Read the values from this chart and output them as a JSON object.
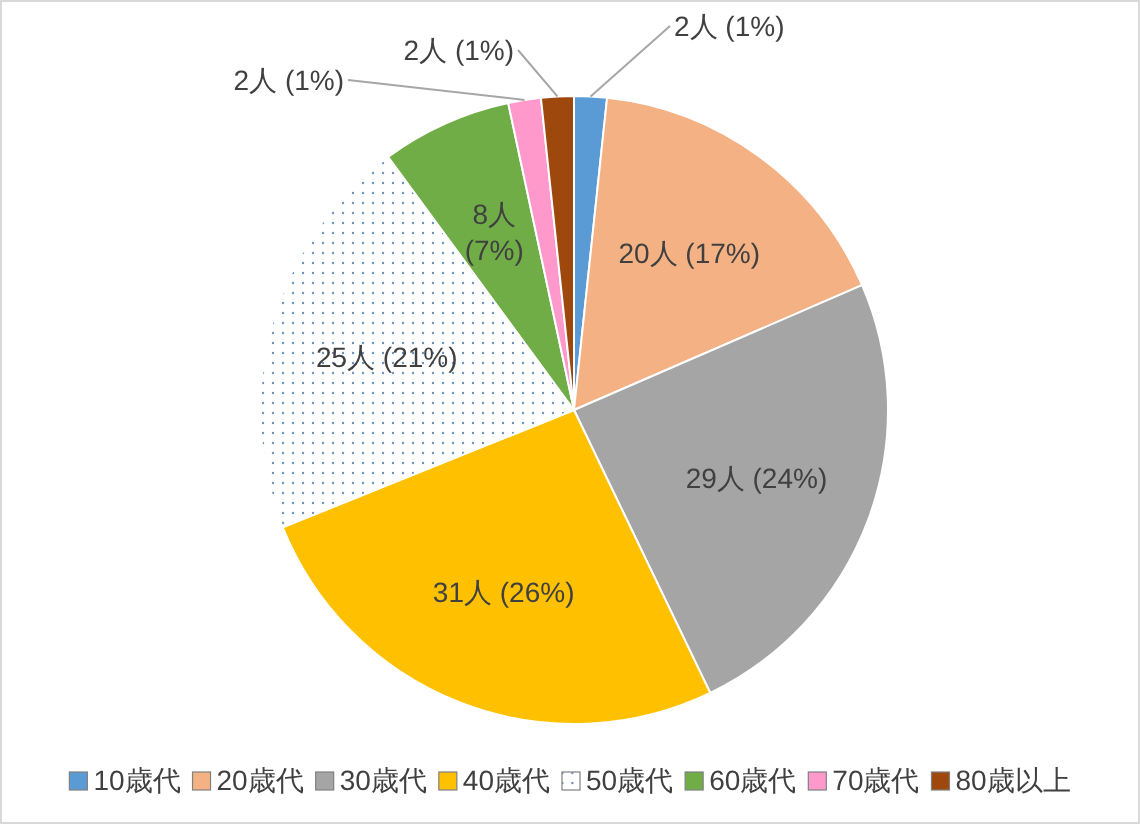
{
  "chart_data": {
    "type": "pie",
    "categories": [
      "10歳代",
      "20歳代",
      "30歳代",
      "40歳代",
      "50歳代",
      "60歳代",
      "70歳代",
      "80歳以上"
    ],
    "values": [
      2,
      20,
      29,
      31,
      25,
      8,
      2,
      2
    ],
    "value_labels": [
      "2人 (1%)",
      "20人 (17%)",
      "29人 (24%)",
      "31人 (26%)",
      "25人 (21%)",
      "8人 (7%)",
      "2人 (1%)",
      "2人 (1%)"
    ],
    "colors": [
      "#5b9bd5",
      "#f4b183",
      "#a5a5a5",
      "#ffc000",
      "#ffffff",
      "#70ad47",
      "#ff99cc",
      "#9e480e"
    ],
    "legend": "bottom"
  }
}
